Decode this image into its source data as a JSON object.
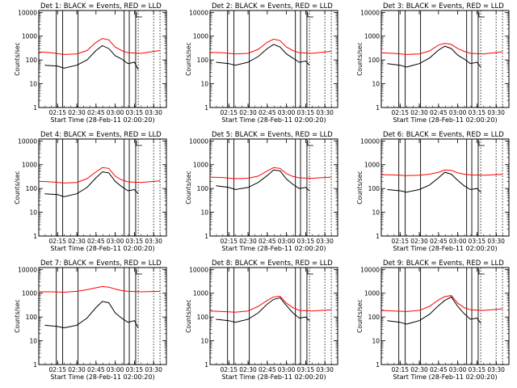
{
  "x_tick_labels": [
    "02:15",
    "02:30",
    "02:45",
    "03:00",
    "03:15",
    "03:30"
  ],
  "y_tick_labels": [
    "1",
    "10",
    "100",
    "1000",
    "10000"
  ],
  "ylabel": "Counts/sec",
  "xlabel": "Start Time (28-Feb-11 02:00:20)",
  "colors": {
    "events": "#000000",
    "lld": "#ff0000"
  },
  "chart_data": [
    {
      "type": "line",
      "title": "Det 1: BLACK = Events, RED = LLD",
      "ylabel": "Counts/sec",
      "xlabel": "Start Time (28-Feb-11 02:00:20)",
      "y_scale": "log",
      "ylim": [
        1,
        12000
      ],
      "xlim": [
        "02:00:20",
        "03:40"
      ],
      "vlines_solid": [
        "02:14",
        "02:19",
        "02:31",
        "03:07",
        "03:11",
        "03:16"
      ],
      "vlines_dotted": [
        "03:18",
        "03:30",
        "03:35"
      ],
      "series": [
        {
          "name": "Events",
          "color": "#000000",
          "x": [
            "02:05",
            "02:15",
            "02:20",
            "02:30",
            "02:38",
            "02:45",
            "02:50",
            "02:55",
            "03:00",
            "03:05",
            "03:10",
            "03:15",
            "03:18"
          ],
          "y": [
            60,
            55,
            45,
            60,
            100,
            250,
            400,
            300,
            150,
            110,
            70,
            80,
            40
          ]
        },
        {
          "name": "LLD",
          "color": "#ff0000",
          "x": [
            "02:00",
            "02:10",
            "02:20",
            "02:30",
            "02:38",
            "02:45",
            "02:50",
            "02:55",
            "03:00",
            "03:05",
            "03:10",
            "03:20",
            "03:35"
          ],
          "y": [
            220,
            200,
            170,
            180,
            250,
            550,
            800,
            700,
            350,
            250,
            200,
            190,
            250
          ]
        }
      ]
    },
    {
      "type": "line",
      "title": "Det 2: BLACK = Events, RED = LLD",
      "ylabel": "Counts/sec",
      "xlabel": "Start Time (28-Feb-11 02:00:20)",
      "y_scale": "log",
      "ylim": [
        1,
        12000
      ],
      "xlim": [
        "02:00:20",
        "03:40"
      ],
      "vlines_solid": [
        "02:14",
        "02:19",
        "02:31",
        "03:07",
        "03:11",
        "03:16"
      ],
      "vlines_dotted": [
        "03:18",
        "03:30",
        "03:35"
      ],
      "series": [
        {
          "name": "Events",
          "color": "#000000",
          "x": [
            "02:05",
            "02:15",
            "02:20",
            "02:30",
            "02:38",
            "02:45",
            "02:50",
            "02:55",
            "03:00",
            "03:05",
            "03:10",
            "03:15",
            "03:18"
          ],
          "y": [
            80,
            70,
            60,
            80,
            140,
            300,
            450,
            350,
            180,
            120,
            80,
            90,
            60
          ]
        },
        {
          "name": "LLD",
          "color": "#ff0000",
          "x": [
            "02:00",
            "02:10",
            "02:20",
            "02:30",
            "02:38",
            "02:45",
            "02:50",
            "02:55",
            "03:00",
            "03:05",
            "03:10",
            "03:20",
            "03:35"
          ],
          "y": [
            210,
            200,
            180,
            190,
            280,
            550,
            750,
            650,
            350,
            250,
            200,
            190,
            230
          ]
        }
      ]
    },
    {
      "type": "line",
      "title": "Det 3: BLACK = Events, RED = LLD",
      "ylabel": "Counts/sec",
      "xlabel": "Start Time (28-Feb-11 02:00:20)",
      "y_scale": "log",
      "ylim": [
        1,
        12000
      ],
      "xlim": [
        "02:00:20",
        "03:40"
      ],
      "vlines_solid": [
        "02:14",
        "02:19",
        "02:31",
        "03:07",
        "03:11",
        "03:16"
      ],
      "vlines_dotted": [
        "03:18",
        "03:30",
        "03:35"
      ],
      "series": [
        {
          "name": "Events",
          "color": "#000000",
          "x": [
            "02:05",
            "02:15",
            "02:20",
            "02:30",
            "02:38",
            "02:45",
            "02:50",
            "02:55",
            "03:00",
            "03:05",
            "03:10",
            "03:15",
            "03:18"
          ],
          "y": [
            70,
            60,
            50,
            70,
            120,
            260,
            380,
            300,
            160,
            110,
            70,
            80,
            50
          ]
        },
        {
          "name": "LLD",
          "color": "#ff0000",
          "x": [
            "02:00",
            "02:10",
            "02:20",
            "02:30",
            "02:38",
            "02:45",
            "02:50",
            "02:55",
            "03:00",
            "03:05",
            "03:10",
            "03:20",
            "03:35"
          ],
          "y": [
            200,
            190,
            170,
            180,
            240,
            420,
            500,
            450,
            300,
            230,
            190,
            180,
            220
          ]
        }
      ]
    },
    {
      "type": "line",
      "title": "Det 4: BLACK = Events, RED = LLD",
      "ylabel": "Counts/sec",
      "xlabel": "Start Time (28-Feb-11 02:00:20)",
      "y_scale": "log",
      "ylim": [
        1,
        12000
      ],
      "xlim": [
        "02:00:20",
        "03:40"
      ],
      "vlines_solid": [
        "02:14",
        "02:19",
        "02:31",
        "03:07",
        "03:11",
        "03:16"
      ],
      "vlines_dotted": [
        "03:18",
        "03:30",
        "03:35"
      ],
      "series": [
        {
          "name": "Events",
          "color": "#000000",
          "x": [
            "02:05",
            "02:15",
            "02:20",
            "02:30",
            "02:38",
            "02:45",
            "02:50",
            "02:55",
            "03:00",
            "03:05",
            "03:10",
            "03:15",
            "03:18"
          ],
          "y": [
            60,
            55,
            45,
            60,
            110,
            280,
            500,
            450,
            200,
            120,
            80,
            90,
            60
          ]
        },
        {
          "name": "LLD",
          "color": "#ff0000",
          "x": [
            "02:00",
            "02:10",
            "02:20",
            "02:30",
            "02:38",
            "02:45",
            "02:50",
            "02:55",
            "03:00",
            "03:05",
            "03:10",
            "03:20",
            "03:35"
          ],
          "y": [
            200,
            190,
            170,
            180,
            260,
            500,
            750,
            700,
            330,
            230,
            190,
            180,
            210
          ]
        }
      ]
    },
    {
      "type": "line",
      "title": "Det 5: BLACK = Events, RED = LLD",
      "ylabel": "Counts/sec",
      "xlabel": "Start Time (28-Feb-11 02:00:20)",
      "y_scale": "log",
      "ylim": [
        1,
        12000
      ],
      "xlim": [
        "02:00:20",
        "03:40"
      ],
      "vlines_solid": [
        "02:14",
        "02:19",
        "02:31",
        "03:07",
        "03:11",
        "03:16"
      ],
      "vlines_dotted": [
        "03:18",
        "03:30",
        "03:35"
      ],
      "series": [
        {
          "name": "Events",
          "color": "#000000",
          "x": [
            "02:05",
            "02:15",
            "02:20",
            "02:30",
            "02:38",
            "02:45",
            "02:50",
            "02:55",
            "03:00",
            "03:05",
            "03:10",
            "03:15",
            "03:18"
          ],
          "y": [
            130,
            110,
            90,
            110,
            180,
            350,
            600,
            550,
            250,
            150,
            100,
            110,
            80
          ]
        },
        {
          "name": "LLD",
          "color": "#ff0000",
          "x": [
            "02:00",
            "02:10",
            "02:20",
            "02:30",
            "02:38",
            "02:45",
            "02:50",
            "02:55",
            "03:00",
            "03:05",
            "03:10",
            "03:20",
            "03:35"
          ],
          "y": [
            300,
            290,
            260,
            270,
            330,
            550,
            750,
            700,
            420,
            320,
            280,
            270,
            300
          ]
        }
      ]
    },
    {
      "type": "line",
      "title": "Det 6: BLACK = Events, RED = LLD",
      "ylabel": "Counts/sec",
      "xlabel": "Start Time (28-Feb-11 02:00:20)",
      "y_scale": "log",
      "ylim": [
        1,
        12000
      ],
      "xlim": [
        "02:00:20",
        "03:40"
      ],
      "vlines_solid": [
        "02:14",
        "02:19",
        "02:31",
        "03:07",
        "03:11",
        "03:16"
      ],
      "vlines_dotted": [
        "03:18",
        "03:30",
        "03:35"
      ],
      "series": [
        {
          "name": "Events",
          "color": "#000000",
          "x": [
            "02:05",
            "02:15",
            "02:20",
            "02:30",
            "02:38",
            "02:45",
            "02:50",
            "02:55",
            "03:00",
            "03:05",
            "03:10",
            "03:15",
            "03:18"
          ],
          "y": [
            90,
            80,
            70,
            90,
            140,
            280,
            480,
            400,
            220,
            130,
            90,
            100,
            70
          ]
        },
        {
          "name": "LLD",
          "color": "#ff0000",
          "x": [
            "02:00",
            "02:10",
            "02:20",
            "02:30",
            "02:38",
            "02:45",
            "02:50",
            "02:55",
            "03:00",
            "03:05",
            "03:10",
            "03:20",
            "03:35"
          ],
          "y": [
            380,
            370,
            350,
            360,
            400,
            480,
            600,
            580,
            450,
            400,
            370,
            360,
            390
          ]
        }
      ]
    },
    {
      "type": "line",
      "title": "Det 7: BLACK = Events, RED = LLD",
      "ylabel": "Counts/sec",
      "xlabel": "Start Time (28-Feb-11 02:00:20)",
      "y_scale": "log",
      "ylim": [
        1,
        12000
      ],
      "xlim": [
        "02:00:20",
        "03:40"
      ],
      "vlines_solid": [
        "02:14",
        "02:19",
        "02:31",
        "03:07",
        "03:11",
        "03:16"
      ],
      "vlines_dotted": [
        "03:18",
        "03:30",
        "03:35"
      ],
      "series": [
        {
          "name": "Events",
          "color": "#000000",
          "x": [
            "02:05",
            "02:15",
            "02:20",
            "02:30",
            "02:38",
            "02:45",
            "02:50",
            "02:55",
            "03:00",
            "03:05",
            "03:10",
            "03:15",
            "03:18"
          ],
          "y": [
            45,
            40,
            35,
            45,
            90,
            250,
            450,
            400,
            150,
            90,
            60,
            70,
            35
          ]
        },
        {
          "name": "LLD",
          "color": "#ff0000",
          "x": [
            "02:00",
            "02:10",
            "02:20",
            "02:30",
            "02:38",
            "02:45",
            "02:50",
            "02:55",
            "03:00",
            "03:05",
            "03:10",
            "03:20",
            "03:35"
          ],
          "y": [
            1150,
            1150,
            1100,
            1200,
            1400,
            1700,
            1900,
            1800,
            1500,
            1300,
            1200,
            1150,
            1200
          ]
        }
      ]
    },
    {
      "type": "line",
      "title": "Det 8: BLACK = Events, RED = LLD",
      "ylabel": "Counts/sec",
      "xlabel": "Start Time (28-Feb-11 02:00:20)",
      "y_scale": "log",
      "ylim": [
        1,
        12000
      ],
      "xlim": [
        "02:00:20",
        "03:40"
      ],
      "vlines_solid": [
        "02:14",
        "02:19",
        "02:31",
        "03:07",
        "03:11",
        "03:16"
      ],
      "vlines_dotted": [
        "03:18",
        "03:30",
        "03:35"
      ],
      "series": [
        {
          "name": "Events",
          "color": "#000000",
          "x": [
            "02:05",
            "02:15",
            "02:20",
            "02:30",
            "02:38",
            "02:45",
            "02:50",
            "02:55",
            "03:00",
            "03:05",
            "03:10",
            "03:15",
            "03:18"
          ],
          "y": [
            80,
            70,
            60,
            80,
            150,
            350,
            550,
            650,
            300,
            150,
            90,
            100,
            70
          ]
        },
        {
          "name": "LLD",
          "color": "#ff0000",
          "x": [
            "02:00",
            "02:10",
            "02:20",
            "02:30",
            "02:38",
            "02:45",
            "02:50",
            "02:55",
            "03:00",
            "03:05",
            "03:10",
            "03:20",
            "03:35"
          ],
          "y": [
            180,
            170,
            160,
            180,
            280,
            500,
            700,
            750,
            380,
            250,
            190,
            180,
            200
          ]
        }
      ]
    },
    {
      "type": "line",
      "title": "Det 9: BLACK = Events, RED = LLD",
      "ylabel": "Counts/sec",
      "xlabel": "Start Time (28-Feb-11 02:00:20)",
      "y_scale": "log",
      "ylim": [
        1,
        12000
      ],
      "xlim": [
        "02:00:20",
        "03:40"
      ],
      "vlines_solid": [
        "02:14",
        "02:19",
        "02:31",
        "03:07",
        "03:11",
        "03:16"
      ],
      "vlines_dotted": [
        "03:18",
        "03:30",
        "03:35"
      ],
      "series": [
        {
          "name": "Events",
          "color": "#000000",
          "x": [
            "02:05",
            "02:15",
            "02:20",
            "02:30",
            "02:38",
            "02:45",
            "02:50",
            "02:55",
            "03:00",
            "03:05",
            "03:10",
            "03:15",
            "03:18"
          ],
          "y": [
            70,
            60,
            50,
            70,
            130,
            300,
            500,
            700,
            280,
            140,
            80,
            90,
            55
          ]
        },
        {
          "name": "LLD",
          "color": "#ff0000",
          "x": [
            "02:00",
            "02:10",
            "02:20",
            "02:30",
            "02:38",
            "02:45",
            "02:50",
            "02:55",
            "03:00",
            "03:05",
            "03:10",
            "03:20",
            "03:35"
          ],
          "y": [
            190,
            180,
            170,
            190,
            280,
            520,
            720,
            800,
            380,
            250,
            200,
            190,
            220
          ]
        }
      ]
    }
  ]
}
